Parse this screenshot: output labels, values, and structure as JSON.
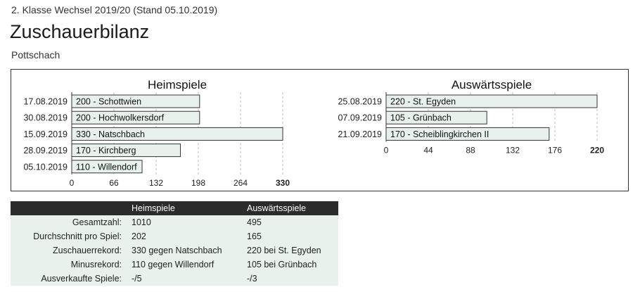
{
  "header": {
    "subtitle": "2. Klasse Wechsel 2019/20 (Stand 05.10.2019)",
    "title": "Zuschauerbilanz",
    "team": "Pottschach"
  },
  "colors": {
    "bar_fill": "#e8f1ec",
    "bar_stroke": "#333333",
    "grid": "#bbbbbb",
    "header_bg": "#2b2b2b"
  },
  "chart_data": [
    {
      "type": "bar",
      "orientation": "horizontal",
      "title": "Heimspiele",
      "categories": [
        "17.08.2019",
        "30.08.2019",
        "15.09.2019",
        "28.09.2019",
        "05.10.2019"
      ],
      "values": [
        200,
        200,
        330,
        170,
        110
      ],
      "bar_labels": [
        "200 - Schottwien",
        "200 - Hochwolkersdorf",
        "330 - Natschbach",
        "170 - Kirchberg",
        "110 - Willendorf"
      ],
      "xlim": [
        0,
        330
      ],
      "xticks": [
        "0",
        "66",
        "132",
        "198",
        "264",
        "330"
      ],
      "grid": true
    },
    {
      "type": "bar",
      "orientation": "horizontal",
      "title": "Auswärtsspiele",
      "categories": [
        "25.08.2019",
        "07.09.2019",
        "21.09.2019"
      ],
      "values": [
        220,
        105,
        170
      ],
      "bar_labels": [
        "220 - St. Egyden",
        "105 - Grünbach",
        "170 - Scheiblingkirchen II"
      ],
      "xlim": [
        0,
        220
      ],
      "xticks": [
        "0",
        "44",
        "88",
        "132",
        "176",
        "220"
      ],
      "grid": true
    }
  ],
  "stats": {
    "headers": [
      "",
      "Heimspiele",
      "Auswärtsspiele"
    ],
    "rows": [
      {
        "label": "Gesamtzahl:",
        "home": "1010",
        "away": "495"
      },
      {
        "label": "Durchschnitt pro Spiel:",
        "home": "202",
        "away": "165"
      },
      {
        "label": "Zuschauerrekord:",
        "home": "330 gegen Natschbach",
        "away": "220 bei St. Egyden"
      },
      {
        "label": "Minusrekord:",
        "home": "110 gegen Willendorf",
        "away": "105 bei Grünbach"
      },
      {
        "label": "Ausverkaufte Spiele:",
        "home": "-/5",
        "away": "-/3"
      }
    ]
  }
}
